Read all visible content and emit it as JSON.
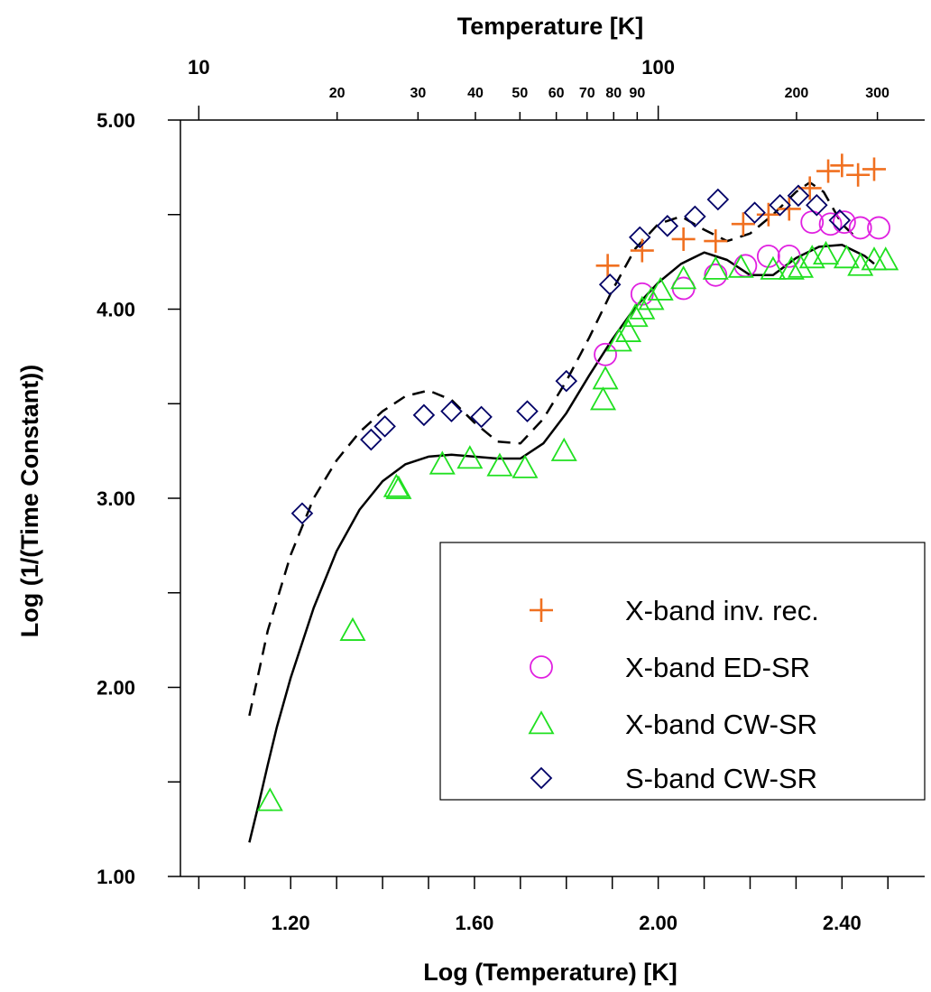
{
  "chart_data": {
    "type": "scatter",
    "title": "",
    "xlabel": "Log (Temperature) [K]",
    "ylabel": "Log (1/(Time Constant))",
    "top_axis_label": "Temperature [K]",
    "xlim": [
      0.96,
      2.58
    ],
    "ylim": [
      1.0,
      5.0
    ],
    "x_tick_labels": [
      "1.20",
      "1.60",
      "2.00",
      "2.40"
    ],
    "y_tick_labels": [
      "1.00",
      "2.00",
      "3.00",
      "4.00",
      "5.00"
    ],
    "top_tick_labels": {
      "major": [
        "10",
        "100"
      ],
      "minor": [
        "20",
        "30",
        "40",
        "50",
        "60",
        "70",
        "80",
        "90",
        "200",
        "300"
      ]
    },
    "legend_position": "lower-right",
    "series": [
      {
        "name": "X-band inv. rec.",
        "marker": "plus",
        "color": "#f07020",
        "points": [
          [
            1.89,
            4.23
          ],
          [
            1.965,
            4.31
          ],
          [
            2.055,
            4.37
          ],
          [
            2.125,
            4.36
          ],
          [
            2.185,
            4.45
          ],
          [
            2.24,
            4.5
          ],
          [
            2.285,
            4.53
          ],
          [
            2.33,
            4.64
          ],
          [
            2.37,
            4.73
          ],
          [
            2.4,
            4.76
          ],
          [
            2.435,
            4.71
          ],
          [
            2.47,
            4.74
          ]
        ]
      },
      {
        "name": "X-band ED-SR",
        "marker": "circle",
        "color": "#e020e0",
        "points": [
          [
            1.885,
            3.76
          ],
          [
            1.965,
            4.08
          ],
          [
            2.055,
            4.11
          ],
          [
            2.125,
            4.18
          ],
          [
            2.19,
            4.23
          ],
          [
            2.24,
            4.28
          ],
          [
            2.285,
            4.28
          ],
          [
            2.335,
            4.46
          ],
          [
            2.375,
            4.45
          ],
          [
            2.405,
            4.46
          ],
          [
            2.44,
            4.43
          ],
          [
            2.48,
            4.43
          ]
        ]
      },
      {
        "name": "X-band CW-SR",
        "marker": "triangle",
        "color": "#20e020",
        "points": [
          [
            1.155,
            1.4
          ],
          [
            1.335,
            2.3
          ],
          [
            1.43,
            3.06
          ],
          [
            1.435,
            3.05
          ],
          [
            1.53,
            3.18
          ],
          [
            1.59,
            3.21
          ],
          [
            1.655,
            3.17
          ],
          [
            1.71,
            3.16
          ],
          [
            1.795,
            3.25
          ],
          [
            1.88,
            3.52
          ],
          [
            1.885,
            3.63
          ],
          [
            1.915,
            3.83
          ],
          [
            1.935,
            3.88
          ],
          [
            1.95,
            3.96
          ],
          [
            1.965,
            4.0
          ],
          [
            1.985,
            4.05
          ],
          [
            2.005,
            4.1
          ],
          [
            2.055,
            4.16
          ],
          [
            2.125,
            4.21
          ],
          [
            2.18,
            4.22
          ],
          [
            2.25,
            4.21
          ],
          [
            2.29,
            4.21
          ],
          [
            2.31,
            4.22
          ],
          [
            2.335,
            4.27
          ],
          [
            2.365,
            4.29
          ],
          [
            2.41,
            4.27
          ],
          [
            2.44,
            4.23
          ],
          [
            2.47,
            4.26
          ],
          [
            2.495,
            4.26
          ]
        ]
      },
      {
        "name": "S-band CW-SR",
        "marker": "diamond",
        "color": "#000066",
        "points": [
          [
            1.225,
            2.92
          ],
          [
            1.375,
            3.31
          ],
          [
            1.405,
            3.38
          ],
          [
            1.49,
            3.44
          ],
          [
            1.55,
            3.46
          ],
          [
            1.615,
            3.43
          ],
          [
            1.715,
            3.46
          ],
          [
            1.8,
            3.62
          ],
          [
            1.895,
            4.13
          ],
          [
            1.96,
            4.38
          ],
          [
            2.02,
            4.44
          ],
          [
            2.08,
            4.49
          ],
          [
            2.13,
            4.58
          ],
          [
            2.21,
            4.51
          ],
          [
            2.265,
            4.55
          ],
          [
            2.305,
            4.6
          ],
          [
            2.345,
            4.55
          ],
          [
            2.395,
            4.47
          ]
        ]
      }
    ],
    "fit_curves": [
      {
        "style": "solid",
        "color": "#000000",
        "points": [
          [
            1.11,
            1.18
          ],
          [
            1.13,
            1.38
          ],
          [
            1.15,
            1.59
          ],
          [
            1.17,
            1.79
          ],
          [
            1.2,
            2.05
          ],
          [
            1.25,
            2.42
          ],
          [
            1.3,
            2.72
          ],
          [
            1.35,
            2.94
          ],
          [
            1.4,
            3.09
          ],
          [
            1.45,
            3.18
          ],
          [
            1.5,
            3.22
          ],
          [
            1.55,
            3.23
          ],
          [
            1.6,
            3.22
          ],
          [
            1.65,
            3.21
          ],
          [
            1.7,
            3.21
          ],
          [
            1.75,
            3.29
          ],
          [
            1.8,
            3.45
          ],
          [
            1.85,
            3.65
          ],
          [
            1.9,
            3.84
          ],
          [
            1.95,
            4.01
          ],
          [
            2.0,
            4.14
          ],
          [
            2.05,
            4.24
          ],
          [
            2.1,
            4.3
          ],
          [
            2.15,
            4.26
          ],
          [
            2.2,
            4.18
          ],
          [
            2.25,
            4.18
          ],
          [
            2.3,
            4.27
          ],
          [
            2.35,
            4.33
          ],
          [
            2.4,
            4.34
          ],
          [
            2.45,
            4.28
          ],
          [
            2.47,
            4.24
          ]
        ]
      },
      {
        "style": "dashed",
        "color": "#000000",
        "points": [
          [
            1.11,
            1.85
          ],
          [
            1.15,
            2.3
          ],
          [
            1.2,
            2.7
          ],
          [
            1.25,
            3.0
          ],
          [
            1.3,
            3.2
          ],
          [
            1.35,
            3.35
          ],
          [
            1.4,
            3.46
          ],
          [
            1.45,
            3.54
          ],
          [
            1.5,
            3.57
          ],
          [
            1.55,
            3.52
          ],
          [
            1.6,
            3.4
          ],
          [
            1.65,
            3.3
          ],
          [
            1.7,
            3.29
          ],
          [
            1.75,
            3.42
          ],
          [
            1.8,
            3.62
          ],
          [
            1.85,
            3.85
          ],
          [
            1.9,
            4.1
          ],
          [
            1.95,
            4.32
          ],
          [
            2.0,
            4.45
          ],
          [
            2.05,
            4.49
          ],
          [
            2.1,
            4.42
          ],
          [
            2.15,
            4.36
          ],
          [
            2.2,
            4.4
          ],
          [
            2.25,
            4.5
          ],
          [
            2.3,
            4.62
          ],
          [
            2.33,
            4.67
          ],
          [
            2.36,
            4.62
          ],
          [
            2.4,
            4.45
          ],
          [
            2.43,
            4.38
          ]
        ]
      }
    ]
  }
}
